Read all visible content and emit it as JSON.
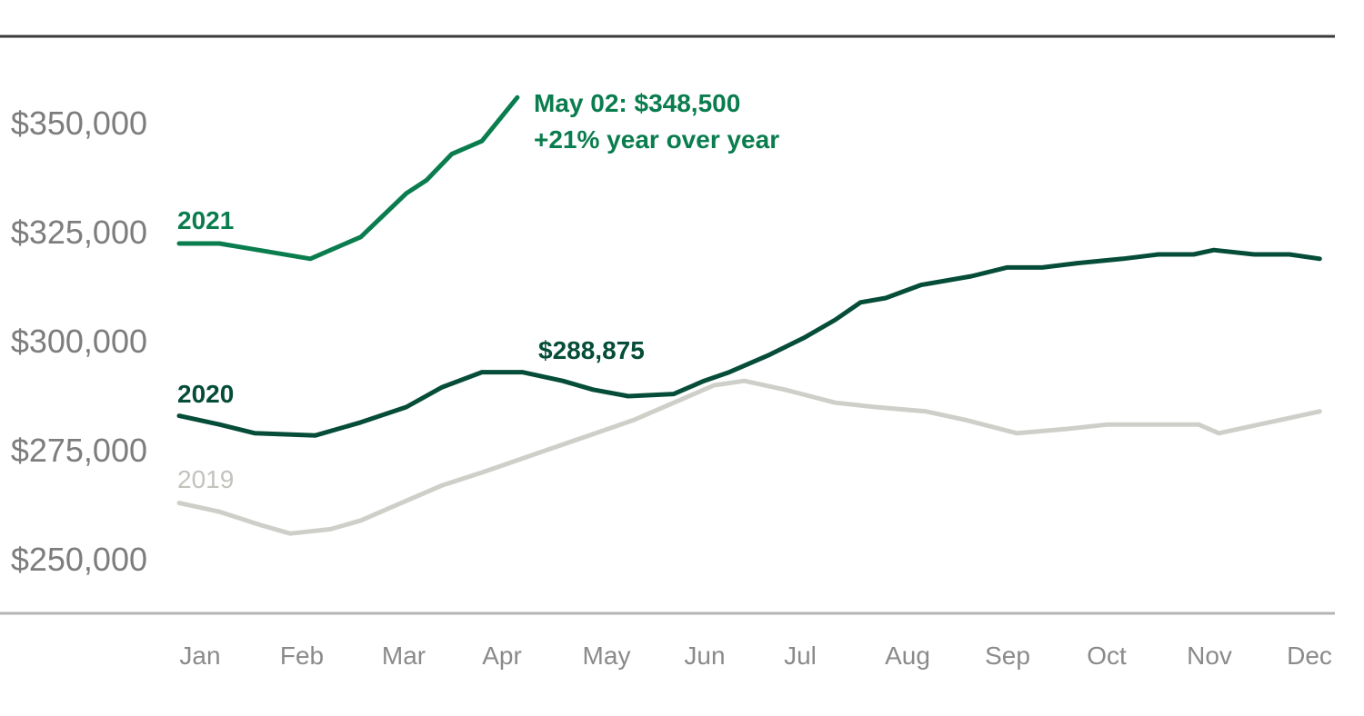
{
  "chart_data": {
    "type": "line",
    "x_tick_labels": [
      "Jan",
      "Feb",
      "Mar",
      "Apr",
      "May",
      "Jun",
      "Jul",
      "Aug",
      "Sep",
      "Oct",
      "Nov",
      "Dec"
    ],
    "y_tick_labels": [
      "$350,000",
      "$325,000",
      "$300,000",
      "$275,000",
      "$250,000"
    ],
    "y_ticks": [
      350000,
      325000,
      300000,
      275000,
      250000
    ],
    "ylim": [
      238000,
      362000
    ],
    "xlim": [
      0,
      11.3
    ],
    "series": [
      {
        "name": "2019",
        "color": "#cfcfca",
        "x": [
          0,
          0.4,
          0.8,
          1.1,
          1.5,
          1.8,
          2.2,
          2.6,
          3.0,
          3.5,
          4.0,
          4.5,
          5.0,
          5.3,
          5.6,
          6.0,
          6.5,
          6.9,
          7.4,
          7.8,
          8.3,
          8.8,
          9.2,
          9.6,
          10.1,
          10.3,
          10.7,
          11.3
        ],
        "y": [
          263000,
          261000,
          258000,
          256000,
          257000,
          259000,
          263000,
          267000,
          270000,
          274000,
          278000,
          282000,
          287000,
          290000,
          291000,
          289000,
          286000,
          285000,
          284000,
          282000,
          279000,
          280000,
          281000,
          281000,
          281000,
          279000,
          281000,
          284000
        ]
      },
      {
        "name": "2020",
        "color": "#054d38",
        "x": [
          0,
          0.4,
          0.75,
          1.35,
          1.8,
          2.25,
          2.6,
          3.0,
          3.4,
          3.8,
          4.1,
          4.45,
          4.9,
          5.2,
          5.45,
          5.85,
          6.2,
          6.5,
          6.75,
          7.0,
          7.35,
          7.85,
          8.2,
          8.55,
          8.9,
          9.35,
          9.7,
          10.05,
          10.25,
          10.65,
          11.0,
          11.3
        ],
        "y": [
          283000,
          281000,
          279000,
          278500,
          281500,
          285000,
          289500,
          293000,
          293000,
          291000,
          289000,
          287500,
          288000,
          291000,
          293000,
          297000,
          301000,
          305000,
          309000,
          310000,
          313000,
          315000,
          317000,
          317000,
          318000,
          319000,
          320000,
          320000,
          321000,
          320000,
          320000,
          319000
        ]
      },
      {
        "name": "2021",
        "color": "#0a7d4e",
        "x": [
          0,
          0.4,
          1.3,
          1.8,
          2.25,
          2.45,
          2.7,
          3.0,
          3.35
        ],
        "y": [
          322500,
          322500,
          319000,
          324000,
          334000,
          337000,
          343000,
          346000,
          356000
        ]
      }
    ],
    "annotations": {
      "may_value_line1": "May 02: $348,500",
      "may_value_line2": "+21% year over year",
      "peak_2020": "$288,875"
    }
  }
}
